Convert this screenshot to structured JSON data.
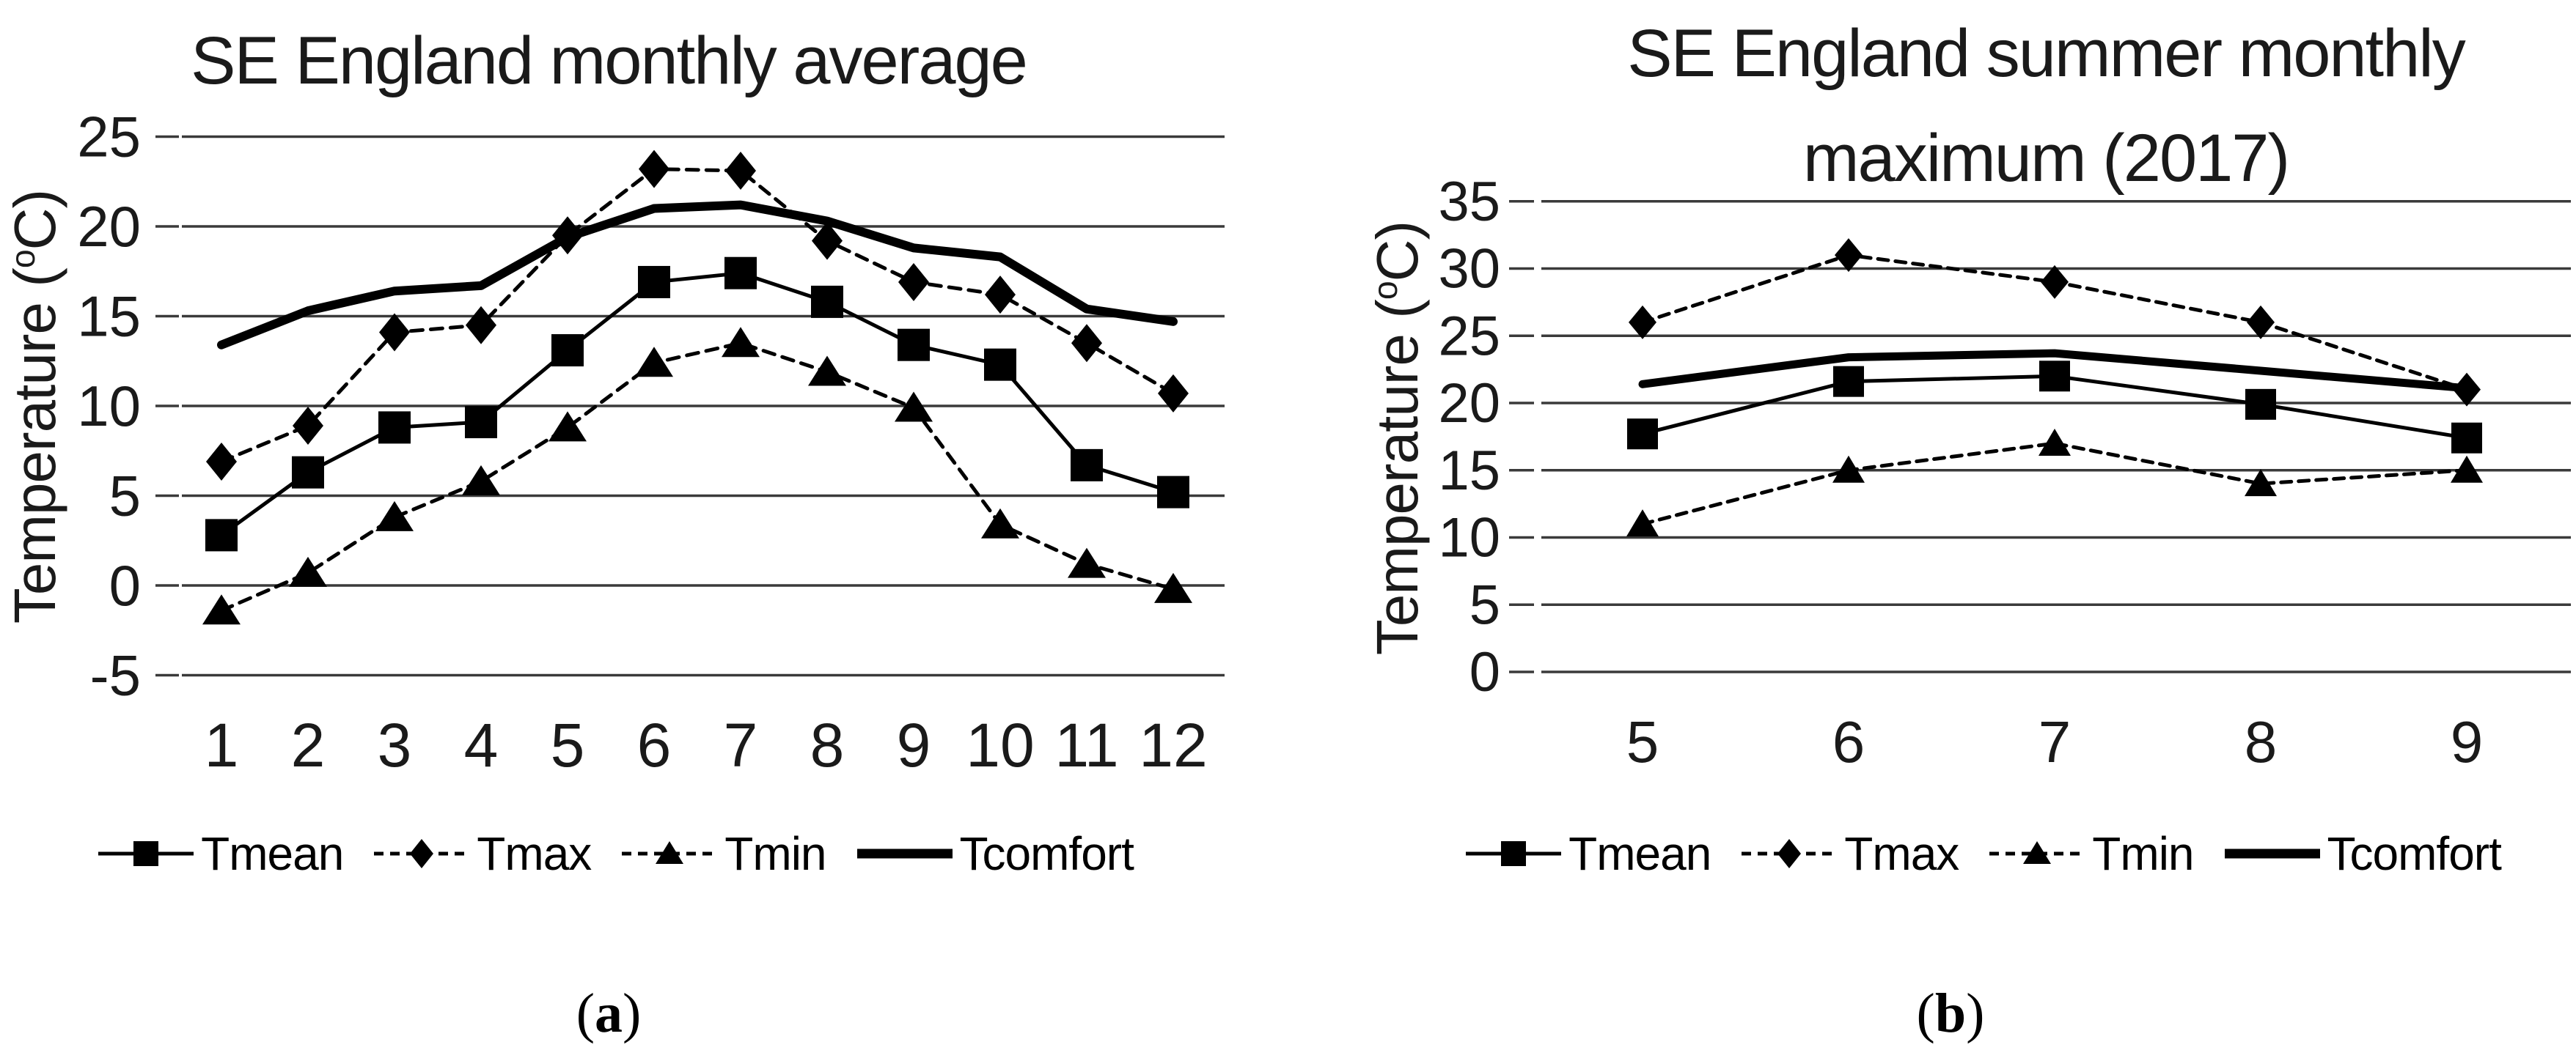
{
  "figure": {
    "background": "#ffffff",
    "ink_color": "#000000",
    "gridline_color": "#3a3a3a"
  },
  "captions": {
    "a": "(a)",
    "b": "(b)"
  },
  "chart_data": [
    {
      "id": "a",
      "type": "line",
      "title": "SE England monthly average",
      "ylabel": "Temperature (°C)",
      "ylabel_parts": {
        "prefix": "Temperature (",
        "sup": "o",
        "suffix": "C)"
      },
      "x": [
        1,
        2,
        3,
        4,
        5,
        6,
        7,
        8,
        9,
        10,
        11,
        12
      ],
      "ylim": [
        -5,
        25
      ],
      "ytick_step": 5,
      "yticks": [
        25,
        20,
        15,
        10,
        5,
        0,
        -5
      ],
      "grid": true,
      "legend_position": "bottom",
      "series": [
        {
          "name": "Tmean",
          "marker": "square",
          "line_style": "solid",
          "line_weight": "thin",
          "values": [
            2.8,
            6.3,
            8.8,
            9.1,
            13.1,
            16.9,
            17.4,
            15.8,
            13.4,
            12.3,
            6.7,
            5.2
          ]
        },
        {
          "name": "Tmax",
          "marker": "diamond",
          "line_style": "dashed",
          "line_weight": "thin",
          "values": [
            6.9,
            8.9,
            14.1,
            14.5,
            19.5,
            23.2,
            23.1,
            19.2,
            16.9,
            16.2,
            13.5,
            10.7
          ]
        },
        {
          "name": "Tmin",
          "marker": "triangle",
          "line_style": "dashed",
          "line_weight": "thin",
          "values": [
            -1.4,
            0.7,
            3.8,
            5.8,
            8.8,
            12.4,
            13.5,
            11.9,
            9.9,
            3.4,
            1.2,
            -0.2
          ]
        },
        {
          "name": "Tcomfort",
          "marker": "none",
          "line_style": "solid",
          "line_weight": "thick",
          "values": [
            13.4,
            15.3,
            16.4,
            16.7,
            19.4,
            21.0,
            21.2,
            20.3,
            18.8,
            18.3,
            15.4,
            14.7
          ]
        }
      ]
    },
    {
      "id": "b",
      "type": "line",
      "title": "SE England summer monthly maximum (2017)",
      "title_lines": [
        "SE England summer monthly",
        "maximum (2017)"
      ],
      "ylabel": "Temperature (°C)",
      "ylabel_parts": {
        "prefix": "Temperature (",
        "sup": "o",
        "suffix": "C)"
      },
      "x": [
        5,
        6,
        7,
        8,
        9
      ],
      "ylim": [
        0,
        35
      ],
      "ytick_step": 5,
      "yticks": [
        35,
        30,
        25,
        20,
        15,
        10,
        5,
        0
      ],
      "grid": true,
      "legend_position": "bottom",
      "series": [
        {
          "name": "Tmean",
          "marker": "square",
          "line_style": "solid",
          "line_weight": "thin",
          "values": [
            17.7,
            21.6,
            22.0,
            19.9,
            17.4
          ]
        },
        {
          "name": "Tmax",
          "marker": "diamond",
          "line_style": "dashed",
          "line_weight": "thin",
          "values": [
            26,
            31,
            29,
            26,
            21
          ]
        },
        {
          "name": "Tmin",
          "marker": "triangle",
          "line_style": "dashed",
          "line_weight": "thin",
          "values": [
            11,
            15,
            17,
            14,
            15
          ]
        },
        {
          "name": "Tcomfort",
          "marker": "none",
          "line_style": "solid",
          "line_weight": "thick",
          "values": [
            21.4,
            23.4,
            23.7,
            22.4,
            21.1
          ]
        }
      ]
    }
  ]
}
